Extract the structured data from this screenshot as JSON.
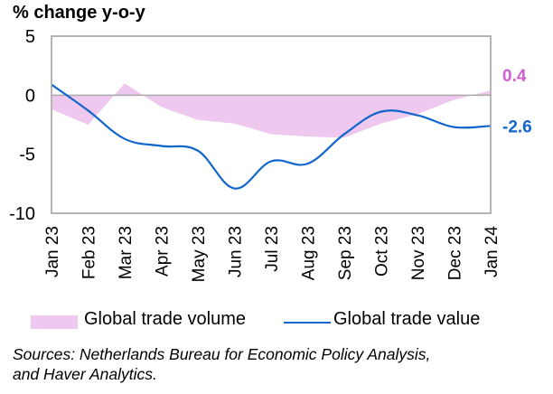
{
  "chart_data": {
    "type": "line",
    "title": "% change y-o-y",
    "xlabel": "",
    "ylabel": "",
    "ylim": [
      -10,
      5
    ],
    "yticks": [
      5,
      0,
      -5,
      -10
    ],
    "categories": [
      "Jan 23",
      "Feb 23",
      "Mar 23",
      "Apr 23",
      "May 23",
      "Jun 23",
      "Jul 23",
      "Aug 23",
      "Sep 23",
      "Oct 23",
      "Nov 23",
      "Dec 23",
      "Jan 24"
    ],
    "series": [
      {
        "name": "Global trade volume",
        "render": "area",
        "color": "#eec8ee",
        "values": [
          -1.2,
          -2.5,
          1.0,
          -1.0,
          -2.1,
          -2.4,
          -3.3,
          -3.5,
          -3.6,
          -2.4,
          -1.6,
          -0.4,
          0.4
        ],
        "end_label": "0.4",
        "end_label_color": "#d25fd2"
      },
      {
        "name": "Global trade value",
        "render": "line",
        "color": "#1166cc",
        "values": [
          0.9,
          -1.3,
          -3.7,
          -4.3,
          -4.7,
          -7.9,
          -5.6,
          -5.8,
          -3.3,
          -1.4,
          -1.7,
          -2.7,
          -2.6
        ],
        "end_label": "-2.6",
        "end_label_color": "#1166cc"
      }
    ],
    "grid": false,
    "zero_line": true,
    "legend_position": "bottom"
  },
  "legend": {
    "volume_label": "Global trade volume",
    "value_label": "Global trade value"
  },
  "sources": {
    "line1": "Sources: Netherlands Bureau for Economic Policy Analysis,",
    "line2": "and Haver Analytics."
  }
}
